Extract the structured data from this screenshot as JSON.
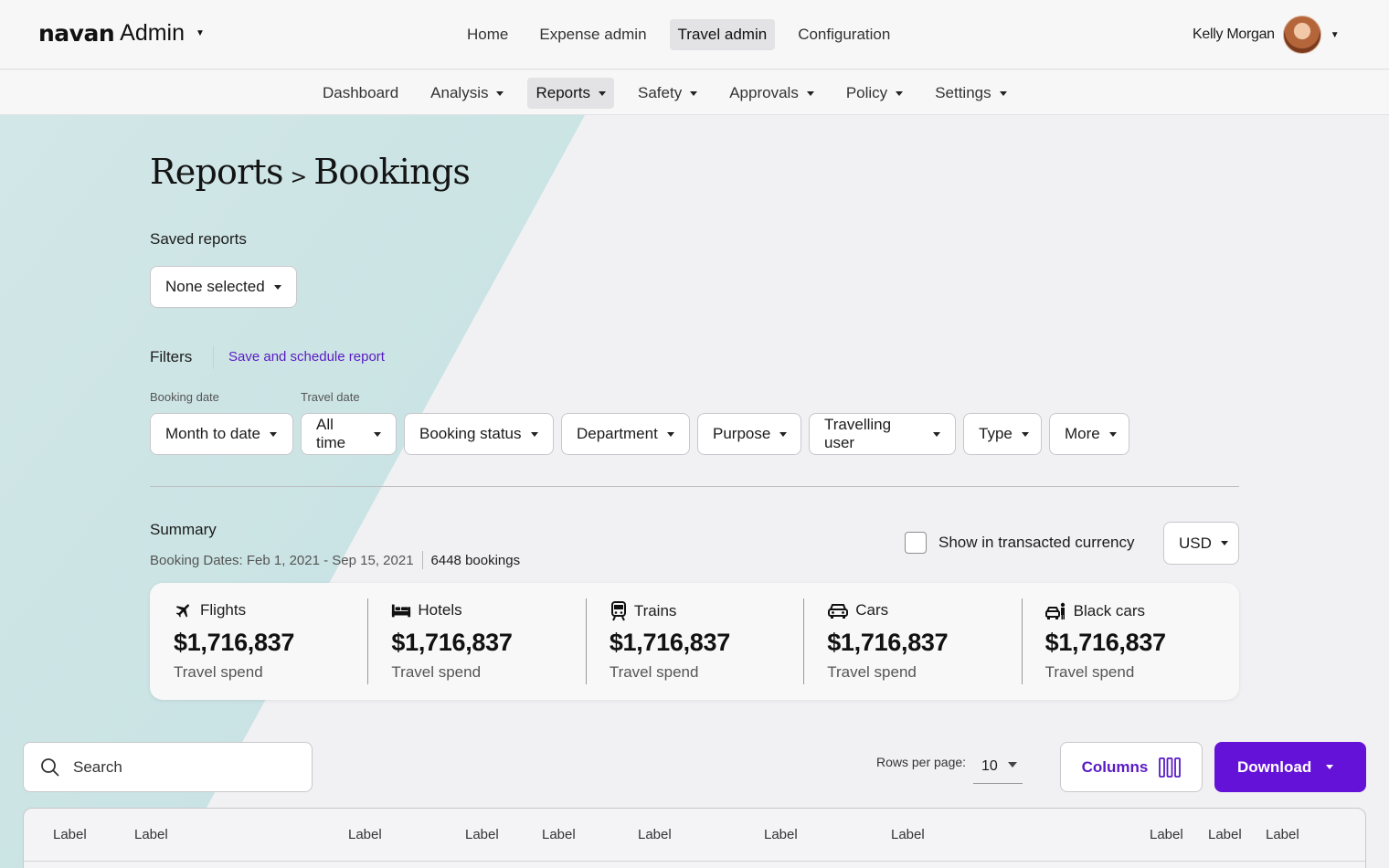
{
  "brand": {
    "logo": "navan",
    "section": "Admin"
  },
  "topnav": {
    "items": [
      {
        "label": "Home",
        "active": false
      },
      {
        "label": "Expense admin",
        "active": false
      },
      {
        "label": "Travel admin",
        "active": true
      },
      {
        "label": "Configuration",
        "active": false
      }
    ]
  },
  "user": {
    "name": "Kelly Morgan"
  },
  "subnav": {
    "items": [
      {
        "label": "Dashboard",
        "caret": false,
        "active": false
      },
      {
        "label": "Analysis",
        "caret": true,
        "active": false
      },
      {
        "label": "Reports",
        "caret": true,
        "active": true
      },
      {
        "label": "Safety",
        "caret": true,
        "active": false
      },
      {
        "label": "Approvals",
        "caret": true,
        "active": false
      },
      {
        "label": "Policy",
        "caret": true,
        "active": false
      },
      {
        "label": "Settings",
        "caret": true,
        "active": false
      }
    ]
  },
  "page": {
    "breadcrumb_parent": "Reports",
    "breadcrumb_sep": ">",
    "title": "Bookings"
  },
  "saved_reports": {
    "label": "Saved reports",
    "value": "None selected"
  },
  "filters": {
    "label": "Filters",
    "save_link": "Save and schedule report",
    "booking_date_label": "Booking date",
    "travel_date_label": "Travel date",
    "buttons": [
      "Month to date",
      "All time",
      "Booking status",
      "Department",
      "Purpose",
      "Travelling user",
      "Type",
      "More"
    ]
  },
  "summary": {
    "label": "Summary",
    "dates": "Booking Dates: Feb 1, 2021 - Sep 15, 2021",
    "count": "6448 bookings",
    "transacted_label": "Show in transacted currency",
    "transacted_checked": false,
    "currency": "USD",
    "cards": [
      {
        "icon": "plane-icon",
        "label": "Flights",
        "value": "$1,716,837",
        "sub": "Travel spend"
      },
      {
        "icon": "bed-icon",
        "label": "Hotels",
        "value": "$1,716,837",
        "sub": "Travel spend"
      },
      {
        "icon": "train-icon",
        "label": "Trains",
        "value": "$1,716,837",
        "sub": "Travel spend"
      },
      {
        "icon": "car-icon",
        "label": "Cars",
        "value": "$1,716,837",
        "sub": "Travel spend"
      },
      {
        "icon": "black-car-icon",
        "label": "Black cars",
        "value": "$1,716,837",
        "sub": "Travel spend"
      }
    ]
  },
  "toolbar": {
    "search_placeholder": "Search",
    "rows_label": "Rows per page:",
    "rows_value": "10",
    "columns_label": "Columns",
    "download_label": "Download"
  },
  "table": {
    "headers": [
      "Label",
      "Label",
      "Label",
      "Label",
      "Label",
      "Label",
      "Label",
      "Label",
      "Label",
      "Label",
      "Label"
    ]
  },
  "colors": {
    "accent": "#6512d8",
    "link": "#5a1bc4",
    "band": "#cde6e6"
  }
}
